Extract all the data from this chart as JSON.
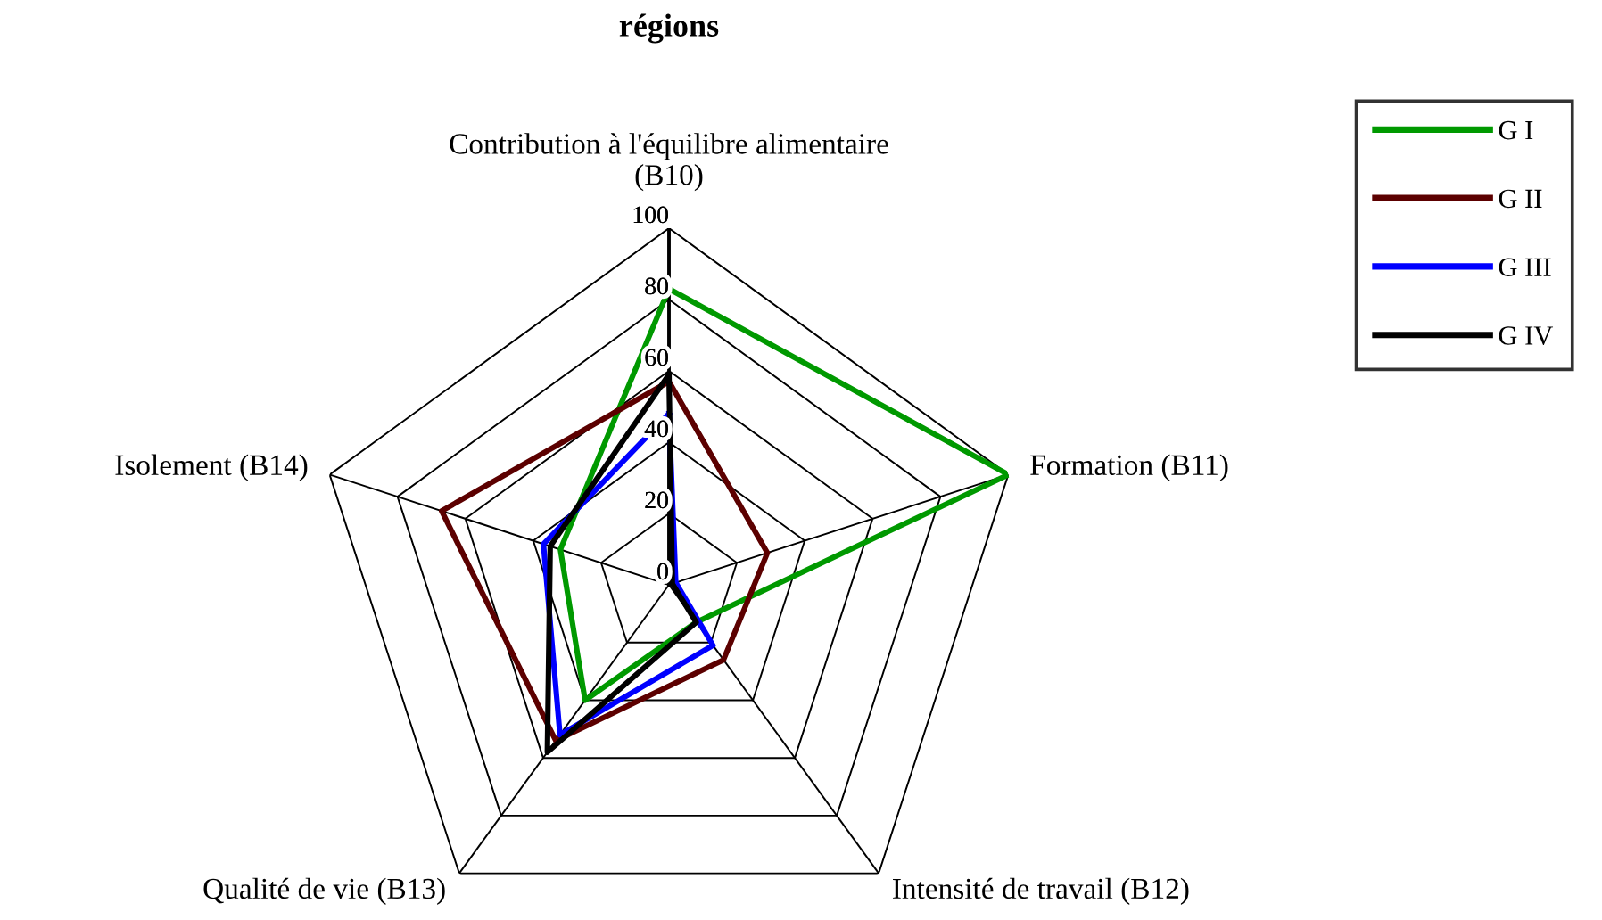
{
  "chart_data": {
    "type": "radar",
    "title": "régions",
    "categories": [
      "Contribution à l'équilibre alimentaire\n(B10)",
      "Formation (B11)",
      "Intensité de travail (B12)",
      "Qualité de vie (B13)",
      "Isolement (B14)"
    ],
    "series": [
      {
        "name": "G I",
        "color": "#009900",
        "values": [
          83,
          100,
          13,
          40,
          32
        ]
      },
      {
        "name": "G II",
        "color": "#5c0000",
        "values": [
          57,
          29,
          26,
          54,
          67
        ]
      },
      {
        "name": "G III",
        "color": "#0000ff",
        "values": [
          48,
          2,
          21,
          52,
          37
        ]
      },
      {
        "name": "G IV",
        "color": "#000000",
        "values": [
          59,
          1,
          13,
          58,
          35
        ]
      }
    ],
    "ylim": [
      0,
      100
    ],
    "yticks": [
      0,
      20,
      40,
      60,
      80,
      100
    ],
    "grid": true,
    "legend": "top right"
  }
}
